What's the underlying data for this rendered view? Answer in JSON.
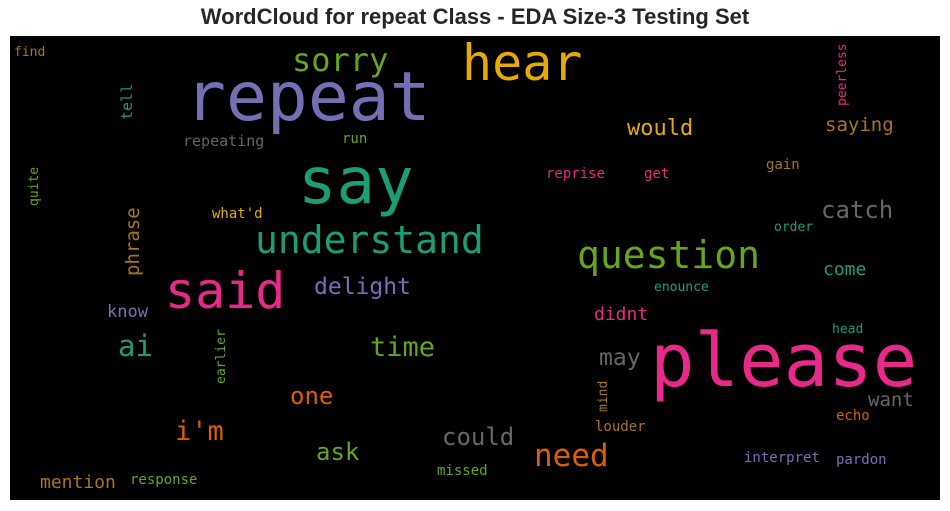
{
  "title": "WordCloud for repeat Class - EDA Size-3 Testing Set",
  "words": {
    "please": "please",
    "repeat": "repeat",
    "say": "say",
    "hear": "hear",
    "understand": "understand",
    "said": "said",
    "question": "question",
    "sorry": "sorry",
    "need": "need",
    "would": "would",
    "catch": "catch",
    "time": "time",
    "delight": "delight",
    "ai": "ai",
    "im": "i'm",
    "could": "could",
    "ask": "ask",
    "may": "may",
    "one": "one",
    "phrase": "phrase",
    "saying": "saying",
    "come": "come",
    "mention": "mention",
    "want": "want",
    "didnt": "didnt",
    "know": "know",
    "repeating": "repeating",
    "tell": "tell",
    "run": "run",
    "reprise": "reprise",
    "get": "get",
    "gain": "gain",
    "whatd": "what'd",
    "order": "order",
    "enounce": "enounce",
    "head": "head",
    "earlier": "earlier",
    "mind": "mind",
    "echo": "echo",
    "louder": "louder",
    "interpret": "interpret",
    "pardon": "pardon",
    "missed": "missed",
    "response": "response",
    "find": "find",
    "quite": "quite",
    "peerless": "peerless"
  },
  "colors": {
    "background": "#000000",
    "magenta": "#e7298a",
    "purple": "#7570b3",
    "teal": "#1b9e77",
    "gold": "#e6ab02",
    "green": "#66a61e",
    "orange": "#d95f02",
    "brown": "#a6761d",
    "gray": "#666666"
  }
}
